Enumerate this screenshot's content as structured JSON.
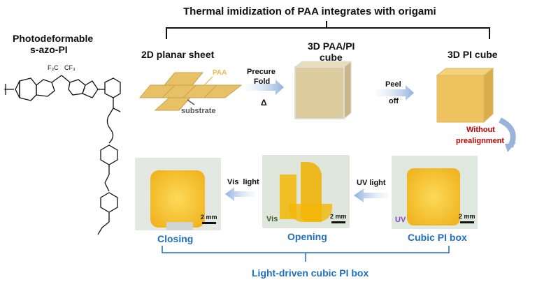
{
  "title": "Thermal imidization of PAA integrates with origami",
  "material": {
    "line1": "Photodeformable",
    "line2": "s-azo-PI",
    "cf3_left": "F₃C",
    "cf3_right": "CF₃"
  },
  "steps": {
    "sheet": {
      "label": "2D planar sheet",
      "paa": "PAA",
      "substrate": "substrate"
    },
    "precure": {
      "line1": "Precure",
      "line2": "Fold",
      "symbol": "Δ"
    },
    "paa_cube": {
      "line1": "3D PAA/PI",
      "line2": "cube"
    },
    "peel": {
      "line1": "Peel",
      "line2": "off"
    },
    "pi_cube": {
      "label": "3D PI cube"
    },
    "prealign": {
      "line1": "Without",
      "line2": "prealignment"
    }
  },
  "photos": {
    "closing": {
      "label": "Closing",
      "scale": "2 mm"
    },
    "opening": {
      "label": "Opening",
      "scale": "2 mm",
      "light": "Vis"
    },
    "cubic": {
      "label": "Cubic PI box",
      "scale": "2 mm",
      "light": "UV"
    }
  },
  "arrows": {
    "vis_light": "Vis  light",
    "uv_light": "UV light"
  },
  "bottom_label": "Light-driven cubic PI box",
  "colors": {
    "label_blue": "#1f6fc0",
    "warning_red": "#c00000",
    "film_yellow": "#f2b705",
    "uv_purple": "#b07ae0",
    "vis_green": "#9cc99a"
  }
}
